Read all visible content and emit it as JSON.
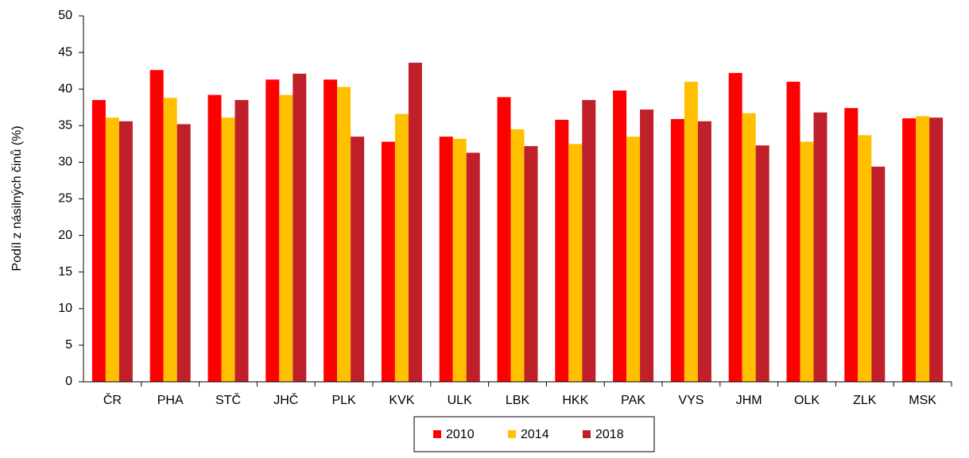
{
  "chart_data": {
    "type": "bar",
    "y_label": "Podíl z násilných činů (%)",
    "categories": [
      "ČR",
      "PHA",
      "STČ",
      "JHČ",
      "PLK",
      "KVK",
      "ULK",
      "LBK",
      "HKK",
      "PAK",
      "VYS",
      "JHM",
      "OLK",
      "ZLK",
      "MSK"
    ],
    "series": [
      {
        "name": "2010",
        "color": "#ff0000",
        "values": [
          38.5,
          42.6,
          39.2,
          41.3,
          41.3,
          32.8,
          33.5,
          38.9,
          35.8,
          39.8,
          35.9,
          42.2,
          41.0,
          37.4,
          36.0
        ]
      },
      {
        "name": "2014",
        "color": "#ffc000",
        "values": [
          36.1,
          38.8,
          36.1,
          39.2,
          40.3,
          36.6,
          33.2,
          34.5,
          32.5,
          33.5,
          41.0,
          36.7,
          32.8,
          33.7,
          36.3
        ]
      },
      {
        "name": "2018",
        "color": "#c0202a",
        "values": [
          35.6,
          35.2,
          38.5,
          42.1,
          33.5,
          43.6,
          31.3,
          32.2,
          38.5,
          37.2,
          35.6,
          32.3,
          36.8,
          29.4,
          36.1
        ]
      }
    ],
    "ylim": [
      0,
      50
    ],
    "yticks": [
      0,
      5,
      10,
      15,
      20,
      25,
      30,
      35,
      40,
      45,
      50
    ],
    "legend": "bottom"
  }
}
